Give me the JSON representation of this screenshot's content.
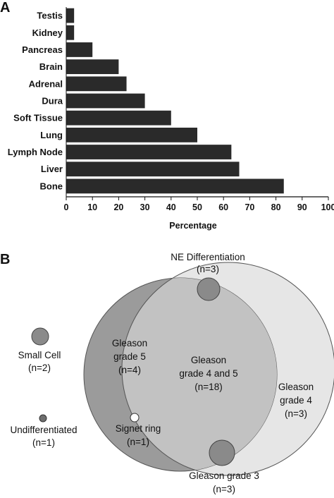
{
  "panels": {
    "a_label": "A",
    "b_label": "B"
  },
  "chart_data": [
    {
      "type": "bar",
      "orientation": "horizontal",
      "categories": [
        "Testis",
        "Kidney",
        "Pancreas",
        "Brain",
        "Adrenal",
        "Dura",
        "Soft Tissue",
        "Lung",
        "Lymph Node",
        "Liver",
        "Bone"
      ],
      "values": [
        3,
        3,
        10,
        20,
        23,
        30,
        40,
        50,
        63,
        66,
        83
      ],
      "xlabel": "Percentage",
      "ylabel": "",
      "xlim": [
        0,
        100
      ],
      "xticks": [
        0,
        10,
        20,
        30,
        40,
        50,
        60,
        70,
        80,
        90,
        100
      ],
      "bar_color": "#2a2a2a",
      "grid": false
    },
    {
      "type": "venn",
      "sets": [
        {
          "key": "gleason5",
          "name": "Gleason grade 5",
          "count": "(n=4)",
          "color": "#9b9b9b"
        },
        {
          "key": "gleason4",
          "name": "Gleason grade 4",
          "count": "(n=3)",
          "color": "#e6e6e6"
        },
        {
          "key": "overlap",
          "name": "Gleason grade 4 and 5",
          "count": "(n=18)",
          "color": "#c2c2c2"
        }
      ],
      "markers": [
        {
          "key": "ne",
          "name": "NE Differentiation",
          "count": "(n=3)",
          "color": "#8a8a8a"
        },
        {
          "key": "small",
          "name": "Small Cell",
          "count": "(n=2)",
          "color": "#8a8a8a"
        },
        {
          "key": "undiff",
          "name": "Undifferentiated",
          "count": "(n=1)",
          "color": "#6e6e6e"
        },
        {
          "key": "signet",
          "name": "Signet ring",
          "count": "(n=1)",
          "color": "#ffffff"
        },
        {
          "key": "g3",
          "name": "Gleason grade 3",
          "count": "(n=3)",
          "color": "#8a8a8a"
        }
      ]
    }
  ]
}
